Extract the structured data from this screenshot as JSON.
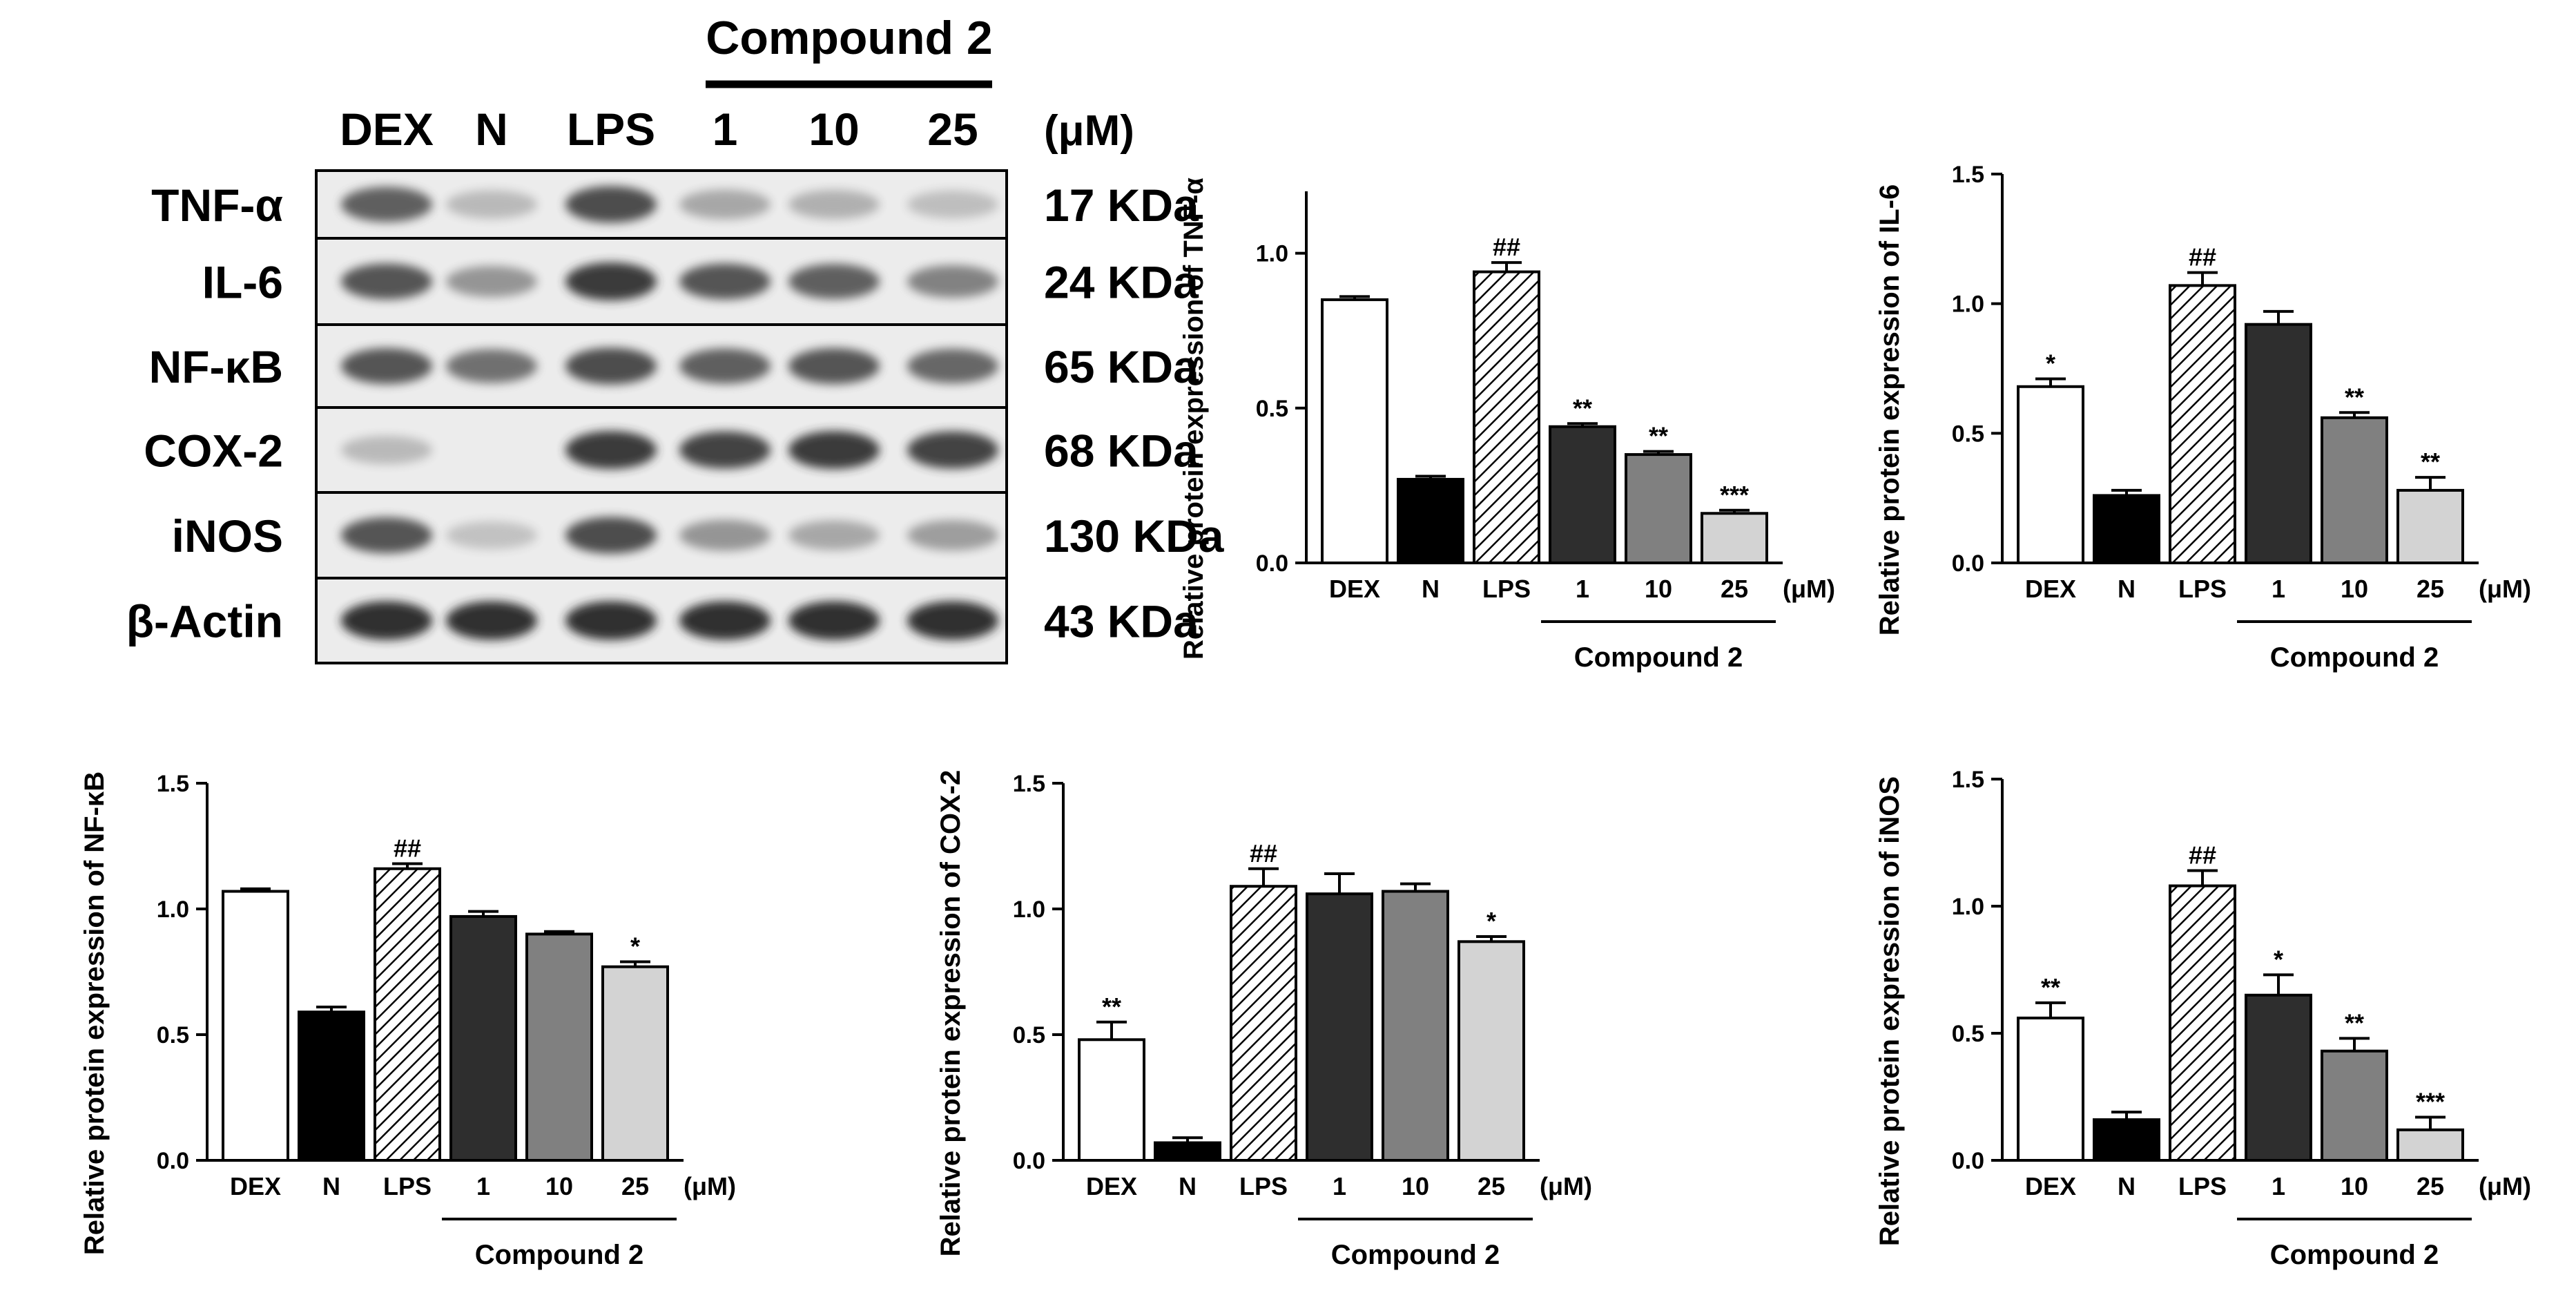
{
  "blot": {
    "group_label": "Compound 2",
    "unit": "(μM)",
    "lanes": [
      "DEX",
      "N",
      "LPS",
      "1",
      "10",
      "25"
    ],
    "rows": [
      {
        "protein": "TNF-α",
        "size": "17 KDa",
        "intensity": [
          0.75,
          0.25,
          0.85,
          0.35,
          0.3,
          0.22
        ]
      },
      {
        "protein": "IL-6",
        "size": "24 KDa",
        "intensity": [
          0.8,
          0.45,
          0.95,
          0.8,
          0.75,
          0.55
        ]
      },
      {
        "protein": "NF-κB",
        "size": "65 KDa",
        "intensity": [
          0.8,
          0.65,
          0.85,
          0.75,
          0.8,
          0.7
        ]
      },
      {
        "protein": "COX-2",
        "size": "68 KDa",
        "intensity": [
          0.25,
          0.0,
          0.95,
          0.9,
          0.95,
          0.9
        ]
      },
      {
        "protein": "iNOS",
        "size": "130 KDa",
        "intensity": [
          0.8,
          0.2,
          0.85,
          0.45,
          0.35,
          0.4
        ]
      },
      {
        "protein": "β-Actin",
        "size": "43 KDa",
        "intensity": [
          1.0,
          1.0,
          1.0,
          1.0,
          1.0,
          1.0
        ]
      }
    ]
  },
  "chart_data": [
    {
      "type": "bar",
      "categories": [
        "DEX",
        "N",
        "LPS",
        "1",
        "10",
        "25"
      ],
      "values": [
        0.85,
        0.27,
        0.94,
        0.44,
        0.35,
        0.16
      ],
      "errors": [
        0.01,
        0.01,
        0.03,
        0.01,
        0.01,
        0.01
      ],
      "annotations": [
        "",
        "",
        "##",
        "**",
        "**",
        "***"
      ],
      "ylabel": "Relative protein expression of TNF-α",
      "ylim": [
        0,
        1.2
      ],
      "yticks": [
        0.0,
        0.5,
        1.0
      ],
      "unit": "(μM)",
      "group_label": "Compound 2"
    },
    {
      "type": "bar",
      "categories": [
        "DEX",
        "N",
        "LPS",
        "1",
        "10",
        "25"
      ],
      "values": [
        0.68,
        0.26,
        1.07,
        0.92,
        0.56,
        0.28
      ],
      "errors": [
        0.03,
        0.02,
        0.05,
        0.05,
        0.02,
        0.05
      ],
      "annotations": [
        "*",
        "",
        "##",
        "",
        "**",
        "**"
      ],
      "ylabel": "Relative protein expression of IL-6",
      "ylim": [
        0,
        1.5
      ],
      "yticks": [
        0.0,
        0.5,
        1.0,
        1.5
      ],
      "unit": "(μM)",
      "group_label": "Compound 2"
    },
    {
      "type": "bar",
      "categories": [
        "DEX",
        "N",
        "LPS",
        "1",
        "10",
        "25"
      ],
      "values": [
        1.07,
        0.59,
        1.16,
        0.97,
        0.9,
        0.77
      ],
      "errors": [
        0.01,
        0.02,
        0.02,
        0.02,
        0.01,
        0.02
      ],
      "annotations": [
        "",
        "",
        "##",
        "",
        "",
        "*"
      ],
      "ylabel": "Relative protein expression of NF-κB",
      "ylim": [
        0,
        1.5
      ],
      "yticks": [
        0.0,
        0.5,
        1.0,
        1.5
      ],
      "unit": "(μM)",
      "group_label": "Compound 2"
    },
    {
      "type": "bar",
      "categories": [
        "DEX",
        "N",
        "LPS",
        "1",
        "10",
        "25"
      ],
      "values": [
        0.48,
        0.07,
        1.09,
        1.06,
        1.07,
        0.87
      ],
      "errors": [
        0.07,
        0.02,
        0.07,
        0.08,
        0.03,
        0.02
      ],
      "annotations": [
        "**",
        "",
        "##",
        "",
        "",
        "*"
      ],
      "ylabel": "Relative protein expression of COX-2",
      "ylim": [
        0,
        1.5
      ],
      "yticks": [
        0.0,
        0.5,
        1.0,
        1.5
      ],
      "unit": "(μM)",
      "group_label": "Compound 2"
    },
    {
      "type": "bar",
      "categories": [
        "DEX",
        "N",
        "LPS",
        "1",
        "10",
        "25"
      ],
      "values": [
        0.56,
        0.16,
        1.08,
        0.65,
        0.43,
        0.12
      ],
      "errors": [
        0.06,
        0.03,
        0.06,
        0.08,
        0.05,
        0.05
      ],
      "annotations": [
        "**",
        "",
        "##",
        "*",
        "**",
        "***"
      ],
      "ylabel": "Relative protein expression of iNOS",
      "ylim": [
        0,
        1.5
      ],
      "yticks": [
        0.0,
        0.5,
        1.0,
        1.5
      ],
      "unit": "(μM)",
      "group_label": "Compound 2"
    }
  ]
}
